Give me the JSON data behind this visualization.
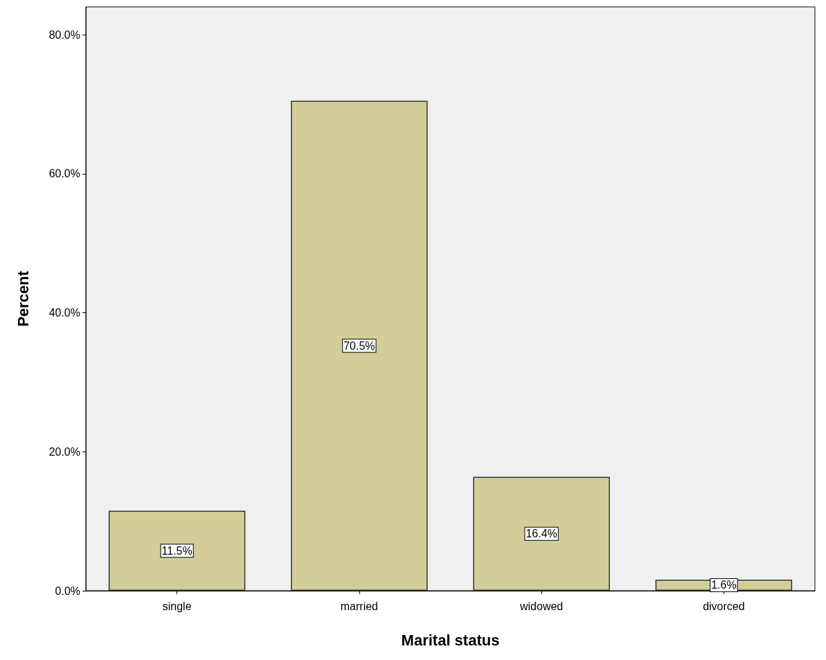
{
  "chart_data": {
    "type": "bar",
    "xlabel": "Marital status",
    "ylabel": "Percent",
    "categories": [
      "single",
      "married",
      "widowed",
      "divorced"
    ],
    "values": [
      11.5,
      70.5,
      16.4,
      1.6
    ],
    "value_labels": [
      "11.5%",
      "70.5%",
      "16.4%",
      "1.6%"
    ],
    "color": "#d3ce97",
    "ylim": [
      0,
      84
    ],
    "yticks": [
      {
        "value": 0,
        "label": "0.0%"
      },
      {
        "value": 20,
        "label": "20.0%"
      },
      {
        "value": 40,
        "label": "40.0%"
      },
      {
        "value": 60,
        "label": "60.0%"
      },
      {
        "value": 80,
        "label": "80.0%"
      }
    ],
    "grid": false
  }
}
